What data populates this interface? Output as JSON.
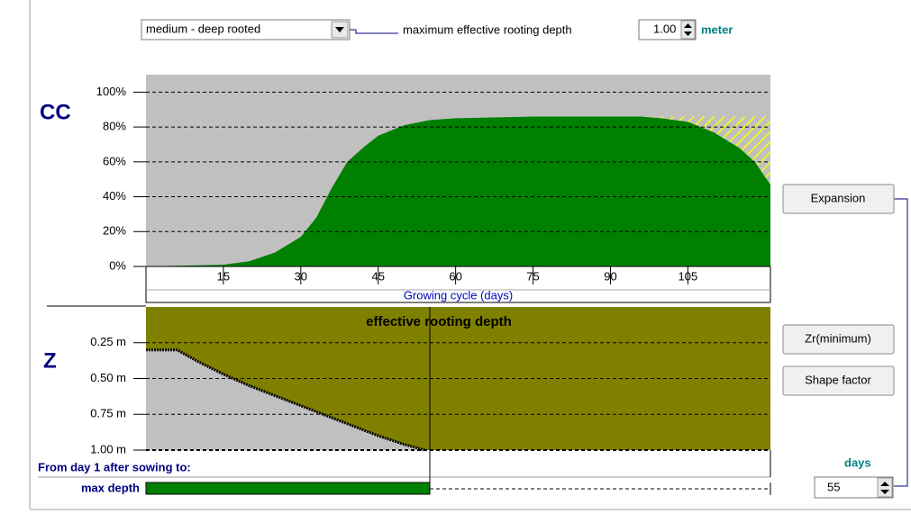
{
  "toolbar": {
    "crop_type": "medium - deep rooted",
    "label": "maximum effective rooting depth",
    "max_depth": "1.00",
    "unit": "meter"
  },
  "canopy_chart": {
    "type": "area",
    "ylabel": "CC",
    "xlabel": "Growing cycle (days)",
    "xlim": [
      0,
      121
    ],
    "ylim": [
      0,
      110
    ],
    "xticks": [
      15,
      30,
      45,
      60,
      75,
      90,
      105
    ],
    "yticks": [
      {
        "value": 0,
        "label": "0%"
      },
      {
        "value": 20,
        "label": "20%"
      },
      {
        "value": 40,
        "label": "40%"
      },
      {
        "value": 60,
        "label": "60%"
      },
      {
        "value": 80,
        "label": "80%"
      },
      {
        "value": 100,
        "label": "100%"
      }
    ],
    "x": [
      0,
      15,
      20,
      25,
      30,
      33,
      36,
      39,
      42,
      45,
      50,
      55,
      60,
      75,
      90,
      96,
      100,
      105,
      110,
      115,
      118,
      121
    ],
    "values": [
      0,
      1,
      3,
      8,
      17,
      28,
      45,
      60,
      68,
      75,
      81,
      84,
      85,
      86,
      86,
      86,
      85,
      83,
      77,
      68,
      60,
      47
    ],
    "color": "#008000",
    "hatch_color": "#ffff00",
    "background": "#c0c0c0",
    "grid": true
  },
  "root_chart": {
    "type": "area",
    "ylabel": "Z",
    "title": "effective  rooting depth",
    "ylim": [
      0,
      1
    ],
    "yticks": [
      {
        "value": 0.25,
        "label": "0.25 m"
      },
      {
        "value": 0.5,
        "label": "0.50 m"
      },
      {
        "value": 0.75,
        "label": "0.75 m"
      },
      {
        "value": 1,
        "label": "1.00 m"
      }
    ],
    "x": [
      0,
      6,
      10,
      15,
      20,
      25,
      30,
      35,
      40,
      45,
      50,
      54
    ],
    "values": [
      0.3,
      0.3,
      0.38,
      0.47,
      0.55,
      0.62,
      0.69,
      0.76,
      0.83,
      0.9,
      0.96,
      1.0
    ],
    "color": "#808000",
    "background": "#c0c0c0",
    "grid": true
  },
  "buttons": [
    "Expansion",
    "Zr(minimum)",
    "Shape factor"
  ],
  "duration": {
    "label": "From day 1 after sowing to:",
    "row_label": "max depth",
    "unit": "days",
    "value": 55,
    "bar_color": "#008000"
  }
}
